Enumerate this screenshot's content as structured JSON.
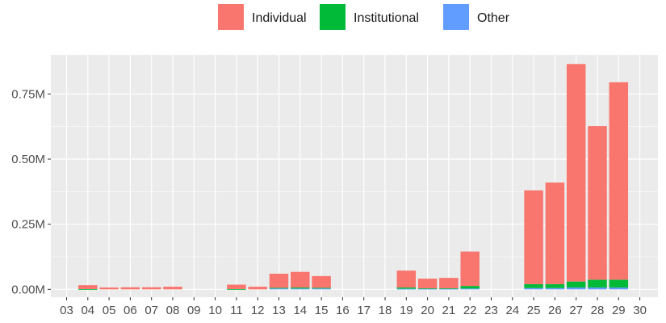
{
  "chart_data": {
    "type": "bar",
    "stacked": true,
    "grid": true,
    "legend_position": "top",
    "categories": [
      "03",
      "04",
      "05",
      "06",
      "07",
      "08",
      "09",
      "10",
      "11",
      "12",
      "13",
      "14",
      "15",
      "16",
      "17",
      "18",
      "19",
      "20",
      "21",
      "22",
      "23",
      "24",
      "25",
      "26",
      "27",
      "28",
      "29",
      "30"
    ],
    "series": [
      {
        "name": "Other",
        "color": "#619CFF",
        "values": [
          0,
          0,
          0,
          0,
          0,
          0,
          0,
          0,
          0,
          0,
          0.003,
          0.003,
          0.003,
          0,
          0,
          0,
          0.002,
          0.002,
          0.002,
          0.003,
          0,
          0,
          0.005,
          0.005,
          0.007,
          0.007,
          0.007,
          0
        ]
      },
      {
        "name": "Institutional",
        "color": "#00BA38",
        "values": [
          0,
          0.001,
          0,
          0,
          0,
          0,
          0,
          0,
          0.001,
          0,
          0.003,
          0.004,
          0.003,
          0,
          0,
          0,
          0.005,
          0.002,
          0.002,
          0.01,
          0,
          0,
          0.015,
          0.015,
          0.023,
          0.03,
          0.03,
          0
        ]
      },
      {
        "name": "Individual",
        "color": "#F8766D",
        "values": [
          0,
          0.015,
          0.007,
          0.008,
          0.008,
          0.01,
          0,
          0,
          0.017,
          0.01,
          0.054,
          0.06,
          0.045,
          0,
          0,
          0,
          0.065,
          0.037,
          0.04,
          0.132,
          0,
          0,
          0.36,
          0.39,
          0.835,
          0.59,
          0.758,
          0
        ]
      }
    ],
    "y_ticks": [
      0,
      0.25,
      0.5,
      0.75
    ],
    "y_tick_labels": [
      "0.00M",
      "0.25M",
      "0.50M",
      "0.75M"
    ],
    "ylim": [
      -0.03,
      0.9
    ]
  },
  "legend": {
    "items": [
      {
        "label": "Individual",
        "color": "#F8766D"
      },
      {
        "label": "Institutional",
        "color": "#00BA38"
      },
      {
        "label": "Other",
        "color": "#619CFF"
      }
    ]
  }
}
